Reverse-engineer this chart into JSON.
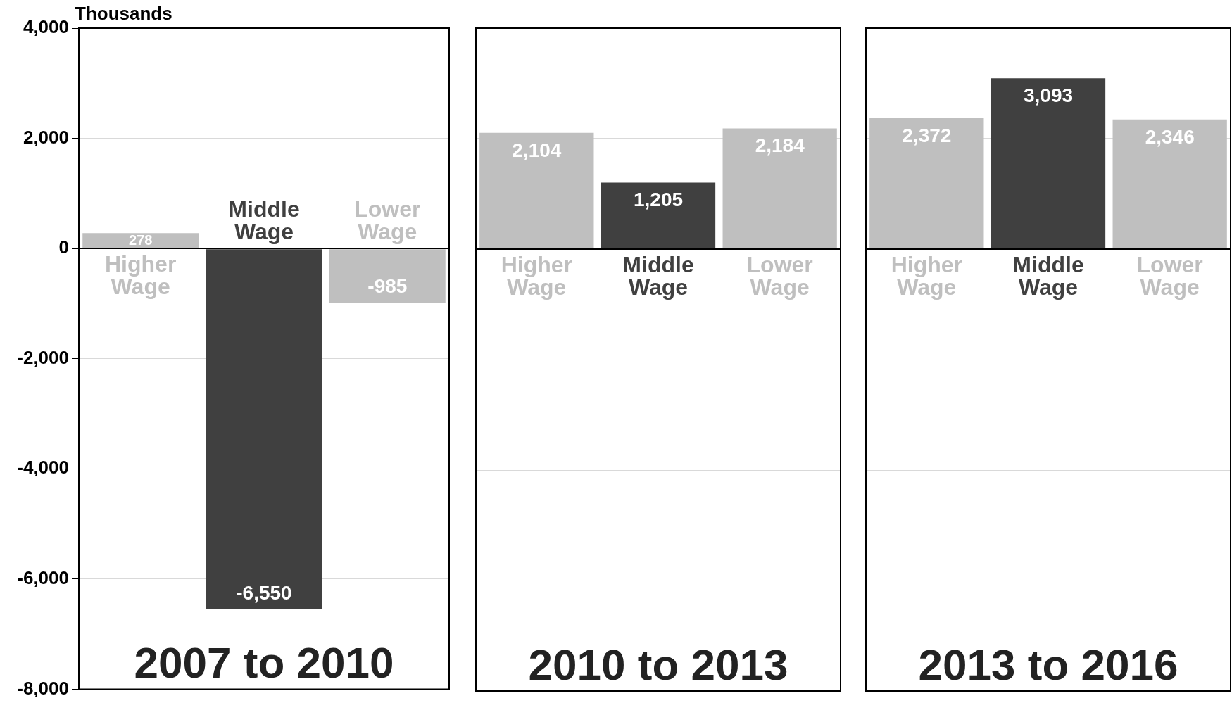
{
  "chart_data": [
    {
      "type": "bar",
      "title": "2007 to 2010",
      "ylabel": "Thousands",
      "categories": [
        "Higher Wage",
        "Middle Wage",
        "Lower Wage"
      ],
      "values": [
        278,
        -6550,
        -985
      ],
      "value_labels": [
        "278",
        "-6,550",
        "-985"
      ],
      "colors": [
        "#bfbfbf",
        "#404040",
        "#bfbfbf"
      ],
      "ylim": [
        -8000,
        4000
      ],
      "yticks": [
        {
          "value": -8000,
          "label": "-8,000"
        },
        {
          "value": -6000,
          "label": "-6,000"
        },
        {
          "value": -4000,
          "label": "-4,000"
        },
        {
          "value": -2000,
          "label": "-2,000"
        },
        0,
        {
          "value": 2000,
          "label": "2,000"
        },
        {
          "value": 4000,
          "label": "4,000"
        }
      ],
      "grid": "y",
      "legend": false
    },
    {
      "type": "bar",
      "title": "2010 to 2013",
      "categories": [
        "Higher Wage",
        "Middle Wage",
        "Lower Wage"
      ],
      "values": [
        2104,
        1205,
        2184
      ],
      "value_labels": [
        "2,104",
        "1,205",
        "2,184"
      ],
      "colors": [
        "#bfbfbf",
        "#404040",
        "#bfbfbf"
      ],
      "ylim": [
        -8000,
        4000
      ],
      "yticks": [
        -8000,
        -6000,
        -4000,
        -2000,
        0,
        2000,
        4000
      ],
      "grid": "y",
      "legend": false,
      "tick_labels": "x"
    },
    {
      "type": "bar",
      "title": "2013 to 2016",
      "categories": [
        "Higher Wage",
        "Middle Wage",
        "Lower Wage"
      ],
      "values": [
        2372,
        3093,
        2346
      ],
      "value_labels": [
        "2,372",
        "3,093",
        "2,346"
      ],
      "colors": [
        "#bfbfbf",
        "#404040",
        "#bfbfbf"
      ],
      "ylim": [
        -8000,
        4000
      ],
      "yticks": [
        -8000,
        -6000,
        -4000,
        -2000,
        0,
        2000,
        4000
      ],
      "grid": "y",
      "legend": false,
      "tick_labels": "x"
    }
  ]
}
